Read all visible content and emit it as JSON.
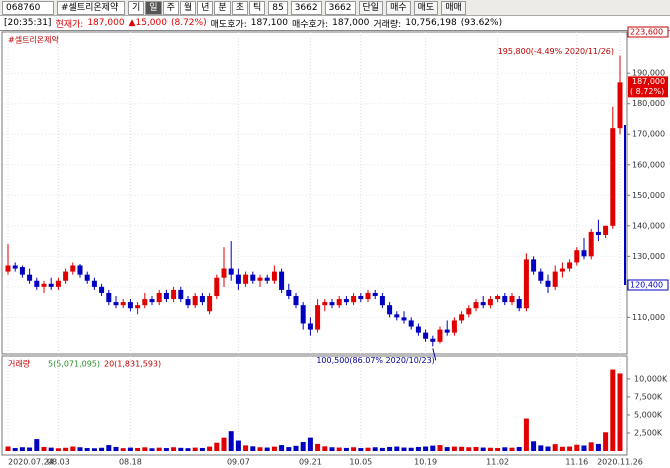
{
  "toolbar": {
    "code": "068760",
    "name": "#셀트리온제약",
    "periods": [
      "기",
      "일",
      "주",
      "월",
      "년",
      "분",
      "초",
      "틱"
    ],
    "count": "85",
    "total": "3662",
    "total2": "3662",
    "single": "단일",
    "buy": "매수",
    "sell": "매도",
    "trade": "매매"
  },
  "status": {
    "time": "[20:35:31]",
    "price_label": "현재가:",
    "price": "187,000",
    "change": "▲15,000",
    "change_pct": "(8.72%)",
    "ask_label": "매도호가:",
    "ask": "187,100",
    "bid_label": "매수호가:",
    "bid": "187,000",
    "volume_label": "거래량:",
    "volume": "10,756,198",
    "volume_pct": "(93.62%)"
  },
  "chart_data": [
    {
      "type": "candlestick",
      "title": "#셀트리온제약",
      "categories": [
        "2020.07.24",
        null,
        null,
        null,
        null,
        null,
        null,
        "08.03",
        null,
        null,
        null,
        null,
        null,
        null,
        null,
        null,
        null,
        "08.18",
        null,
        null,
        null,
        null,
        null,
        null,
        null,
        null,
        null,
        null,
        null,
        null,
        null,
        null,
        "09.07",
        null,
        null,
        null,
        null,
        null,
        null,
        null,
        null,
        null,
        "09.21",
        null,
        null,
        null,
        null,
        null,
        null,
        "10.05",
        null,
        null,
        null,
        null,
        null,
        null,
        null,
        null,
        "10.19",
        null,
        null,
        null,
        null,
        null,
        null,
        null,
        null,
        null,
        "11.02",
        null,
        null,
        null,
        null,
        null,
        null,
        null,
        null,
        null,
        null,
        "11.16",
        null,
        null,
        null,
        null,
        null,
        "2020.11.26"
      ],
      "open": [
        125000,
        127000,
        126500,
        124000,
        122000,
        120000,
        121000,
        120000,
        122000,
        125000,
        127000,
        124000,
        122000,
        120000,
        118000,
        115000,
        114000,
        115000,
        113000,
        114000,
        116000,
        115000,
        118000,
        116000,
        119000,
        116000,
        114000,
        117000,
        112000,
        117000,
        123000,
        126000,
        124000,
        121000,
        124000,
        122000,
        123000,
        122000,
        125000,
        119000,
        117000,
        114000,
        108000,
        106000,
        114000,
        115000,
        114000,
        116000,
        115000,
        117000,
        116000,
        118000,
        117000,
        114000,
        111000,
        110000,
        109000,
        107000,
        105000,
        103000,
        102000,
        106000,
        105000,
        109000,
        111000,
        113000,
        115000,
        114000,
        116000,
        117000,
        115000,
        116000,
        113000,
        129000,
        125000,
        122000,
        120000,
        125000,
        126000,
        128000,
        132000,
        130000,
        138000,
        137000,
        140000,
        172000
      ],
      "high": [
        134000,
        128000,
        127000,
        126000,
        123000,
        122000,
        123000,
        123000,
        126000,
        128000,
        127500,
        125000,
        123000,
        121000,
        119000,
        117000,
        116000,
        116000,
        115000,
        118000,
        117000,
        119000,
        119000,
        120000,
        120000,
        117000,
        118000,
        118000,
        118000,
        124000,
        133000,
        135000,
        126000,
        125000,
        125000,
        124000,
        124000,
        127000,
        126000,
        121000,
        118000,
        115000,
        110000,
        116000,
        116000,
        116000,
        117000,
        117000,
        118000,
        118000,
        119000,
        119000,
        118000,
        115000,
        112000,
        112000,
        110000,
        108000,
        106000,
        104000,
        107000,
        109000,
        110000,
        112000,
        114000,
        116000,
        117000,
        117000,
        117500,
        118000,
        118000,
        117000,
        131000,
        130000,
        126000,
        124000,
        127000,
        128000,
        129000,
        133000,
        136000,
        139000,
        142000,
        140000,
        179000,
        195800
      ],
      "low": [
        124000,
        125000,
        123000,
        121000,
        119000,
        118000,
        119000,
        119000,
        121000,
        124000,
        123000,
        121000,
        119000,
        117000,
        114000,
        113000,
        113000,
        112000,
        111000,
        113000,
        114000,
        114000,
        115000,
        115000,
        115000,
        113000,
        113000,
        114000,
        111000,
        116000,
        120000,
        122000,
        119000,
        120000,
        121000,
        120000,
        121000,
        121000,
        118000,
        116000,
        113000,
        106000,
        104000,
        105000,
        112000,
        113000,
        113000,
        114000,
        114000,
        115000,
        115000,
        116000,
        113000,
        110000,
        109000,
        108000,
        106000,
        104000,
        102000,
        100500,
        101500,
        104000,
        104000,
        108000,
        110000,
        112000,
        113000,
        113000,
        115000,
        114000,
        114000,
        112000,
        112000,
        124000,
        121000,
        118000,
        119000,
        123000,
        125000,
        127000,
        129000,
        129000,
        135000,
        136000,
        139000,
        170000
      ],
      "close": [
        127000,
        126000,
        124000,
        122000,
        120000,
        121000,
        120000,
        122000,
        125000,
        127000,
        124000,
        122000,
        120000,
        118000,
        115000,
        114000,
        115000,
        113000,
        114000,
        116000,
        115000,
        118000,
        116000,
        119000,
        116000,
        114000,
        117000,
        115000,
        117000,
        123000,
        126000,
        124000,
        121000,
        124000,
        122000,
        123000,
        122000,
        125000,
        119000,
        117000,
        114000,
        108000,
        106000,
        114000,
        115000,
        114000,
        116000,
        115000,
        117000,
        116000,
        118000,
        117000,
        114000,
        111000,
        110000,
        109000,
        107000,
        105000,
        103000,
        102000,
        106000,
        105000,
        109000,
        111000,
        113000,
        115000,
        114000,
        116000,
        117000,
        115000,
        117000,
        113000,
        129000,
        125000,
        122000,
        120000,
        125000,
        126000,
        128000,
        132000,
        130000,
        138000,
        137000,
        140000,
        172000,
        187000
      ],
      "up_color": "#e00000",
      "down_color": "#0000c0",
      "ylim": [
        98000,
        203500
      ],
      "yticks": [
        {
          "value": 110000,
          "label": "110,000"
        },
        {
          "value": 120000,
          "label": "120,000"
        },
        {
          "value": 130000,
          "label": "130,000"
        },
        {
          "value": 140000,
          "label": "140,000"
        },
        {
          "value": 150000,
          "label": "150,000"
        },
        {
          "value": 160000,
          "label": "160,000"
        },
        {
          "value": 170000,
          "label": "170,000"
        },
        {
          "value": 180000,
          "label": "180,000"
        },
        {
          "value": 190000,
          "label": "190,000"
        }
      ],
      "grid": true,
      "annotations": [
        "195,800(-4.49% 2020/11/26)",
        "100,500(86.07% 2020/10/23)"
      ],
      "price_tags": [
        "223,600",
        "187,000",
        "( 8.72%)",
        "120,400"
      ]
    },
    {
      "type": "bar",
      "title": "거래량",
      "legend": [
        "5(5,071,095)",
        "20(1,831,593)"
      ],
      "values": [
        620000,
        410000,
        520000,
        480000,
        1650000,
        560000,
        470000,
        380000,
        450000,
        620000,
        520000,
        410000,
        380000,
        450000,
        820000,
        560000,
        390000,
        470000,
        420000,
        510000,
        380000,
        460000,
        410000,
        520000,
        440000,
        390000,
        470000,
        420000,
        610000,
        1150000,
        1850000,
        2750000,
        1450000,
        780000,
        650000,
        520000,
        480000,
        610000,
        820000,
        540000,
        720000,
        1250000,
        1850000,
        980000,
        650000,
        520000,
        480000,
        430000,
        520000,
        410000,
        460000,
        520000,
        430000,
        560000,
        620000,
        480000,
        450000,
        560000,
        620000,
        750000,
        820000,
        540000,
        610000,
        580000,
        520000,
        560000,
        480000,
        450000,
        420000,
        510000,
        460000,
        560000,
        4500000,
        1350000,
        780000,
        620000,
        950000,
        580000,
        620000,
        870000,
        760000,
        1200000,
        980000,
        2600000,
        11300000,
        10756198
      ],
      "ylim": [
        0,
        12900000
      ],
      "yticks": [
        {
          "value": 2500000,
          "label": "2,500K"
        },
        {
          "value": 5000000,
          "label": "5,000K"
        },
        {
          "value": 7500000,
          "label": "7,500K"
        },
        {
          "value": 10000000,
          "label": "10,000K"
        }
      ]
    }
  ]
}
